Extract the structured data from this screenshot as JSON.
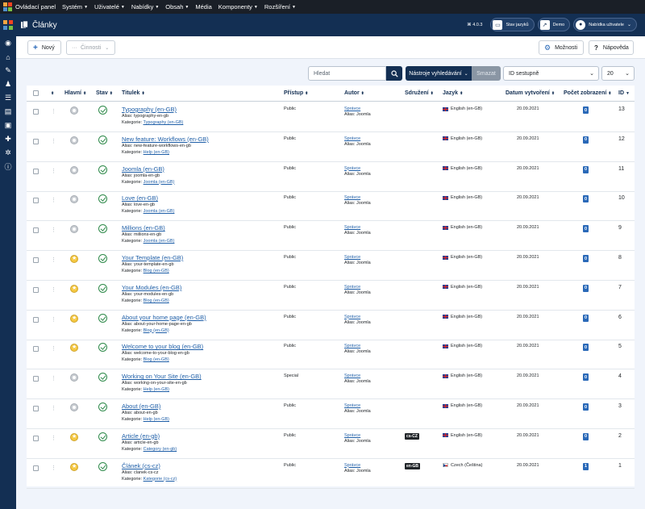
{
  "menubar": {
    "items": [
      {
        "label": "Ovládací panel",
        "caret": false
      },
      {
        "label": "Systém",
        "caret": true
      },
      {
        "label": "Uživatelé",
        "caret": true
      },
      {
        "label": "Nabídky",
        "caret": true
      },
      {
        "label": "Obsah",
        "caret": true
      },
      {
        "label": "Média",
        "caret": false
      },
      {
        "label": "Komponenty",
        "caret": true
      },
      {
        "label": "Rozšíření",
        "caret": true
      }
    ]
  },
  "header": {
    "title": "Články",
    "version": "4.0.3",
    "language_status": "Stav jazyků",
    "demo": "Demo",
    "user_menu": "Nabídka uživatele"
  },
  "toolbar": {
    "new_label": "Nový",
    "actions_label": "Činnosti",
    "options_label": "Možnosti",
    "help_label": "Nápověda"
  },
  "filters": {
    "search_placeholder": "Hledat",
    "tools_label": "Nástroje vyhledávání",
    "clear_label": "Smazat",
    "sort_value": "ID sestupně",
    "limit_value": "20"
  },
  "table": {
    "headers": {
      "featured": "Hlavní",
      "status": "Stav",
      "title": "Titulek",
      "access": "Přístup",
      "author": "Autor",
      "association": "Sdružení",
      "language": "Jazyk",
      "date": "Datum vytvoření",
      "hits": "Počet zobrazení",
      "id": "ID"
    },
    "rows": [
      {
        "title": "Typography (en-GB)",
        "alias": "Alias: typography-en-gb",
        "category_prefix": "Kategorie:",
        "category": "Typography (en-GB)",
        "featured": false,
        "access": "Public",
        "author": "Správce",
        "author_alias": "Alias: Joomla",
        "association": "",
        "flag": "gb",
        "language": "English (en-GB)",
        "date": "20.09.2021",
        "hits": "0",
        "id": "13"
      },
      {
        "title": "New feature: Workflows (en-GB)",
        "alias": "Alias: new-feature-workflows-en-gb",
        "category_prefix": "Kategorie:",
        "category": "Help (en-GB)",
        "featured": false,
        "access": "Public",
        "author": "Správce",
        "author_alias": "Alias: Joomla",
        "association": "",
        "flag": "gb",
        "language": "English (en-GB)",
        "date": "20.09.2021",
        "hits": "0",
        "id": "12"
      },
      {
        "title": "Joomla (en-GB)",
        "alias": "Alias: joomla-en-gb",
        "category_prefix": "Kategorie:",
        "category": "Joomla (en-GB)",
        "featured": false,
        "access": "Public",
        "author": "Správce",
        "author_alias": "Alias: Joomla",
        "association": "",
        "flag": "gb",
        "language": "English (en-GB)",
        "date": "20.09.2021",
        "hits": "0",
        "id": "11"
      },
      {
        "title": "Love (en-GB)",
        "alias": "Alias: love-en-gb",
        "category_prefix": "Kategorie:",
        "category": "Joomla (en-GB)",
        "featured": false,
        "access": "Public",
        "author": "Správce",
        "author_alias": "Alias: Joomla",
        "association": "",
        "flag": "gb",
        "language": "English (en-GB)",
        "date": "20.09.2021",
        "hits": "0",
        "id": "10"
      },
      {
        "title": "Millions (en-GB)",
        "alias": "Alias: millions-en-gb",
        "category_prefix": "Kategorie:",
        "category": "Joomla (en-GB)",
        "featured": false,
        "access": "Public",
        "author": "Správce",
        "author_alias": "Alias: Joomla",
        "association": "",
        "flag": "gb",
        "language": "English (en-GB)",
        "date": "20.09.2021",
        "hits": "0",
        "id": "9"
      },
      {
        "title": "Your Template (en-GB)",
        "alias": "Alias: your-template-en-gb",
        "category_prefix": "Kategorie:",
        "category": "Blog (en-GB)",
        "featured": true,
        "access": "Public",
        "author": "Správce",
        "author_alias": "Alias: Joomla",
        "association": "",
        "flag": "gb",
        "language": "English (en-GB)",
        "date": "20.09.2021",
        "hits": "0",
        "id": "8"
      },
      {
        "title": "Your Modules (en-GB)",
        "alias": "Alias: your-modules-en-gb",
        "category_prefix": "Kategorie:",
        "category": "Blog (en-GB)",
        "featured": true,
        "access": "Public",
        "author": "Správce",
        "author_alias": "Alias: Joomla",
        "association": "",
        "flag": "gb",
        "language": "English (en-GB)",
        "date": "20.09.2021",
        "hits": "0",
        "id": "7"
      },
      {
        "title": "About your home page (en-GB)",
        "alias": "Alias: about-your-home-page-en-gb",
        "category_prefix": "Kategorie:",
        "category": "Blog (en-GB)",
        "featured": true,
        "access": "Public",
        "author": "Správce",
        "author_alias": "Alias: Joomla",
        "association": "",
        "flag": "gb",
        "language": "English (en-GB)",
        "date": "20.09.2021",
        "hits": "0",
        "id": "6"
      },
      {
        "title": "Welcome to your blog (en-GB)",
        "alias": "Alias: welcome-to-your-blog-en-gb",
        "category_prefix": "Kategorie:",
        "category": "Blog (en-GB)",
        "featured": true,
        "access": "Public",
        "author": "Správce",
        "author_alias": "Alias: Joomla",
        "association": "",
        "flag": "gb",
        "language": "English (en-GB)",
        "date": "20.09.2021",
        "hits": "0",
        "id": "5"
      },
      {
        "title": "Working on Your Site (en-GB)",
        "alias": "Alias: working-on-your-site-en-gb",
        "category_prefix": "Kategorie:",
        "category": "Help (en-GB)",
        "featured": false,
        "access": "Special",
        "author": "Správce",
        "author_alias": "Alias: Joomla",
        "association": "",
        "flag": "gb",
        "language": "English (en-GB)",
        "date": "20.09.2021",
        "hits": "0",
        "id": "4"
      },
      {
        "title": "About (en-GB)",
        "alias": "Alias: about-en-gb",
        "category_prefix": "Kategorie:",
        "category": "Help (en-GB)",
        "featured": false,
        "access": "Public",
        "author": "Správce",
        "author_alias": "Alias: Joomla",
        "association": "",
        "flag": "gb",
        "language": "English (en-GB)",
        "date": "20.09.2021",
        "hits": "0",
        "id": "3"
      },
      {
        "title": "Article (en-gb)",
        "alias": "Alias: article-en-gb",
        "category_prefix": "Kategorie:",
        "category": "Category (en-gb)",
        "featured": true,
        "access": "Public",
        "author": "Správce",
        "author_alias": "Alias: Joomla",
        "association": "cs-CZ",
        "flag": "gb",
        "language": "English (en-GB)",
        "date": "20.09.2021",
        "hits": "0",
        "id": "2"
      },
      {
        "title": "Článek (cs-cz)",
        "alias": "Alias: clanek-cs-cz",
        "category_prefix": "Kategorie:",
        "category": "Kategorie (cs-cz)",
        "featured": true,
        "access": "Public",
        "author": "Správce",
        "author_alias": "Alias: Joomla",
        "association": "en-GB",
        "flag": "cz",
        "language": "Czech (Čeština)",
        "date": "20.09.2021",
        "hits": "1",
        "id": "1"
      }
    ]
  },
  "colors": {
    "brand_dark": "#132f53",
    "link": "#1f5fa8",
    "status_published": "#2e8a4a",
    "featured_star": "#f5c842"
  }
}
